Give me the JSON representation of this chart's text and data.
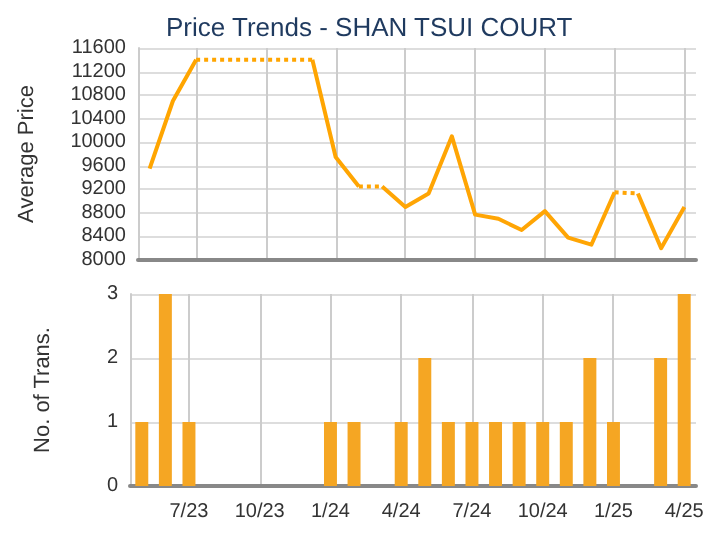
{
  "chart_data": [
    {
      "type": "line",
      "title": "Price Trends - SHAN TSUI COURT",
      "ylabel": "Average Price",
      "categories": [
        null,
        null,
        null,
        null,
        null,
        null,
        null,
        null,
        null,
        null,
        null,
        null,
        null,
        null,
        null,
        null,
        null,
        null,
        null,
        null,
        null,
        null,
        null,
        null
      ],
      "series": [
        {
          "color": "#ffa500",
          "line_style": "solid",
          "values": [
            9550,
            10700,
            11400,
            null,
            null,
            null,
            null,
            null,
            null,
            null,
            null,
            null,
            null,
            null,
            null,
            null,
            null,
            null,
            null,
            null,
            null,
            null,
            null,
            null
          ]
        },
        {
          "color": "#ffa501",
          "line_style": "dotted",
          "values": [
            null,
            null,
            11400,
            11400,
            11400,
            11400,
            11400,
            11400,
            null,
            null,
            null,
            null,
            null,
            null,
            null,
            null,
            null,
            null,
            null,
            null,
            null,
            null,
            null,
            null
          ]
        },
        {
          "color": "#ffa502",
          "line_style": "solid",
          "values": [
            null,
            null,
            null,
            null,
            null,
            null,
            null,
            11400,
            9750,
            9250,
            null,
            null,
            null,
            null,
            null,
            null,
            null,
            null,
            null,
            null,
            null,
            null,
            null,
            null
          ]
        },
        {
          "color": "#ffa503",
          "line_style": "dotted",
          "values": [
            null,
            null,
            null,
            null,
            null,
            null,
            null,
            null,
            null,
            9250,
            9250,
            null,
            null,
            null,
            null,
            null,
            null,
            null,
            null,
            null,
            null,
            null,
            null,
            null
          ]
        },
        {
          "color": "#ffa504",
          "line_style": "solid",
          "values": [
            null,
            null,
            null,
            null,
            null,
            null,
            null,
            null,
            null,
            null,
            9250,
            8900,
            9130,
            10100,
            8770,
            8700,
            8510,
            8830,
            8380,
            8260,
            9150,
            null,
            null,
            null
          ]
        },
        {
          "color": "#ffa505",
          "line_style": "dotted",
          "values": [
            null,
            null,
            null,
            null,
            null,
            null,
            null,
            null,
            null,
            null,
            null,
            null,
            null,
            null,
            null,
            null,
            null,
            null,
            null,
            null,
            9150,
            9130,
            null,
            null
          ]
        },
        {
          "color": "#ffa506",
          "line_style": "solid",
          "values": [
            null,
            null,
            null,
            null,
            null,
            null,
            null,
            null,
            null,
            null,
            null,
            null,
            null,
            null,
            null,
            null,
            null,
            null,
            null,
            null,
            null,
            9130,
            8200,
            8900
          ]
        }
      ],
      "ylim": [
        8000,
        11600
      ],
      "yticks": [
        8000,
        8400,
        8800,
        9200,
        9600,
        10000,
        10400,
        10800,
        11200,
        11600
      ],
      "tick_labels": "y",
      "grid": true,
      "marker": "none"
    },
    {
      "type": "bar",
      "ylabel": "No. of Trans.",
      "categories": [
        null,
        null,
        "7/23",
        null,
        null,
        "10/23",
        null,
        null,
        "1/24",
        null,
        null,
        "4/24",
        null,
        null,
        "7/24",
        null,
        null,
        "10/24",
        null,
        null,
        "1/25",
        null,
        null,
        "4/25"
      ],
      "values": [
        1,
        3,
        1,
        0,
        0,
        0,
        0,
        0,
        1,
        1,
        0,
        1,
        2,
        1,
        1,
        1,
        1,
        1,
        1,
        2,
        1,
        0,
        2,
        3
      ],
      "color": "#f5a623",
      "ylim": [
        0,
        3
      ],
      "yticks": [
        0,
        1,
        2,
        3
      ],
      "grid": true
    }
  ]
}
